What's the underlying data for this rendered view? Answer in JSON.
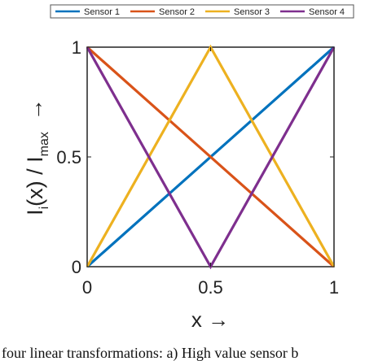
{
  "chart_data": {
    "type": "line",
    "title": "",
    "xlabel": "x →",
    "ylabel_main": "I",
    "ylabel_sub": "i",
    "ylabel_mid": "(x)  / I",
    "ylabel_sub2": "max",
    "ylabel_arrow": "→",
    "xlim": [
      0,
      1
    ],
    "ylim": [
      0,
      1
    ],
    "xticks": [
      0,
      0.5,
      1
    ],
    "yticks": [
      0,
      0.5,
      1
    ],
    "xtick_labels": [
      "0",
      "0.5",
      "1"
    ],
    "ytick_labels": [
      "0",
      "0.5",
      "1"
    ],
    "grid": false,
    "legend_position": "top",
    "series": [
      {
        "name": "Sensor 1",
        "color": "#0072BD",
        "x": [
          0,
          1
        ],
        "y": [
          0,
          1
        ]
      },
      {
        "name": "Sensor 2",
        "color": "#D95319",
        "x": [
          0,
          1
        ],
        "y": [
          1,
          0
        ]
      },
      {
        "name": "Sensor 3",
        "color": "#EDB120",
        "x": [
          0,
          0.5,
          1
        ],
        "y": [
          0,
          1,
          0
        ]
      },
      {
        "name": "Sensor 4",
        "color": "#7E2F8E",
        "x": [
          0,
          0.5,
          1
        ],
        "y": [
          1,
          0,
          1
        ]
      }
    ]
  },
  "caption": "four linear transformations: a) High value sensor b"
}
